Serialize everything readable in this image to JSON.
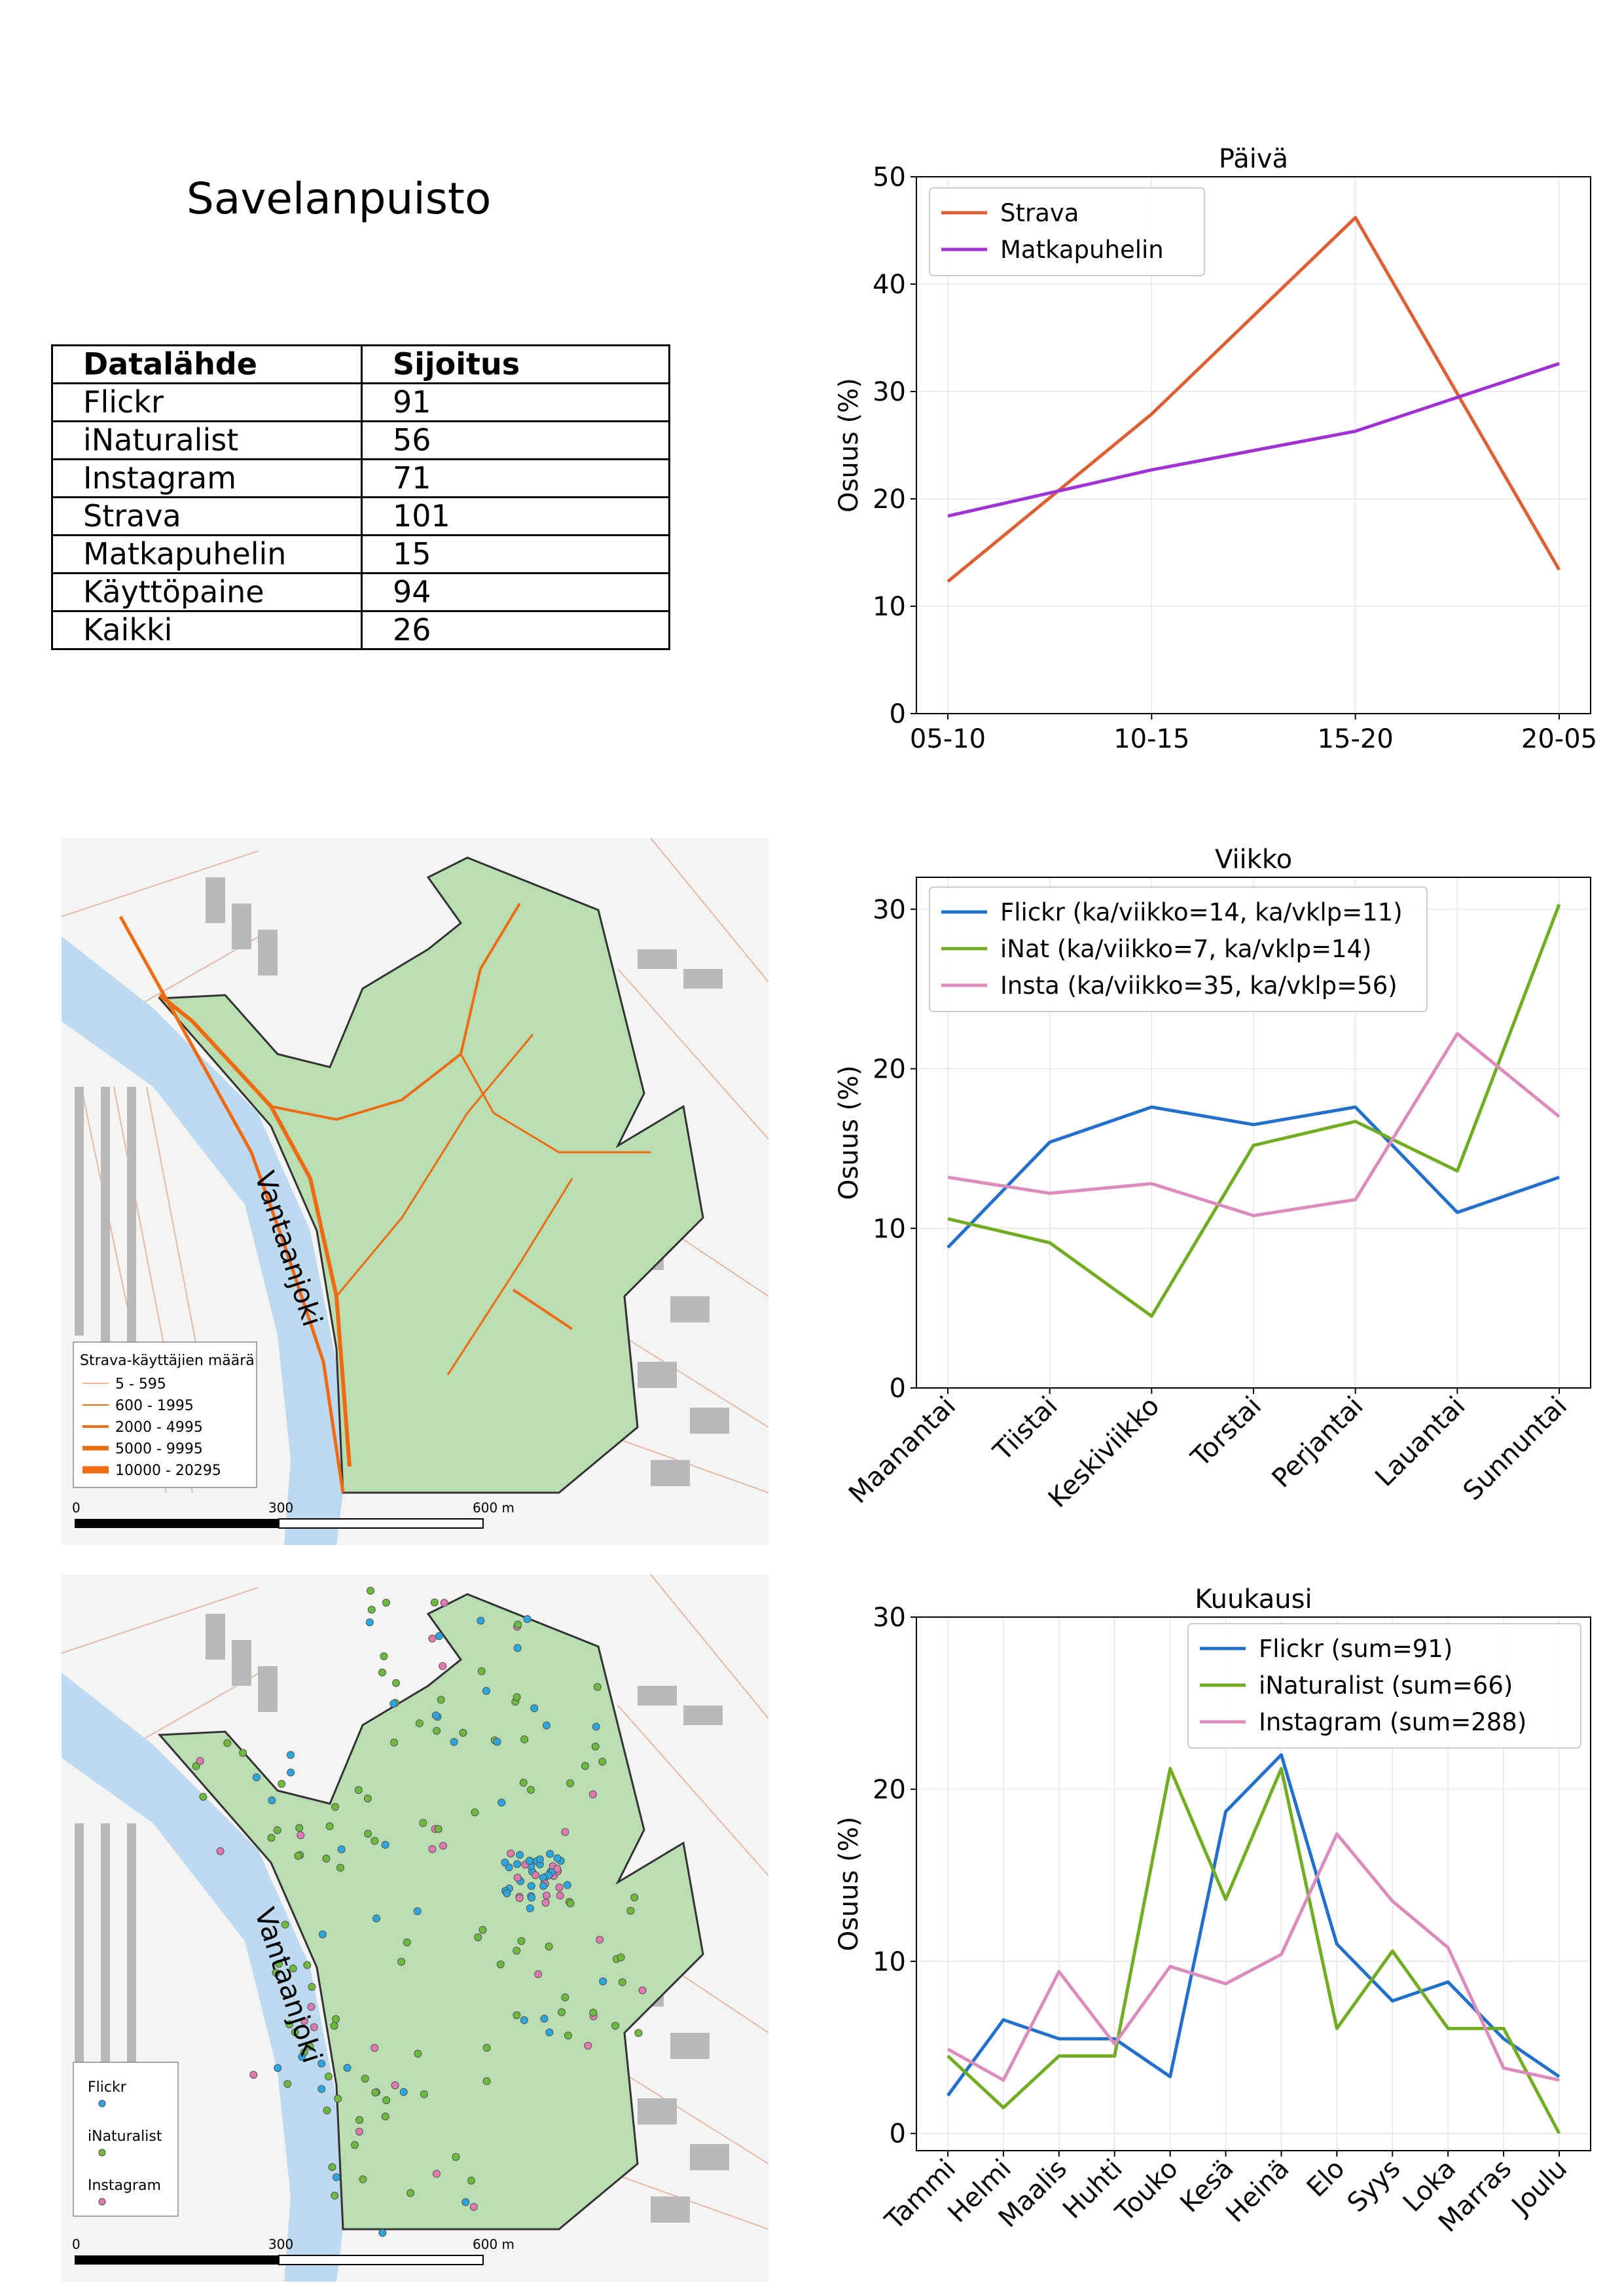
{
  "title": "Savelanpuisto",
  "table": {
    "headers": [
      "Datalähde",
      "Sijoitus"
    ],
    "rows": [
      [
        "Flickr",
        "91"
      ],
      [
        "iNaturalist",
        "56"
      ],
      [
        "Instagram",
        "71"
      ],
      [
        "Strava",
        "101"
      ],
      [
        "Matkapuhelin",
        "15"
      ],
      [
        "Käyttöpaine",
        "94"
      ],
      [
        "Kaikki",
        "26"
      ]
    ]
  },
  "map_strava": {
    "river_label": "Vantaanjoki",
    "legend_title": "Strava-käyttäjien määrä",
    "legend_items": [
      "5 - 595",
      "600 - 1995",
      "2000 - 4995",
      "5000 - 9995",
      "10000 - 20295"
    ],
    "scale_labels": [
      "0",
      "300",
      "600 m"
    ],
    "colors": {
      "park": "#b9deb2",
      "route": "#f06a12",
      "river": "#bedaf0"
    }
  },
  "map_points": {
    "river_label": "Vantaanjoki",
    "legend_items": [
      "Flickr",
      "iNaturalist",
      "Instagram"
    ],
    "scale_labels": [
      "0",
      "300",
      "600 m"
    ],
    "colors": {
      "flickr": "#2aa7e0",
      "inaturalist": "#6dba3c",
      "instagram": "#e07ab0"
    }
  },
  "chart_data": [
    {
      "type": "line",
      "title": "Päivä",
      "ylabel": "Osuus (%)",
      "xlabel": "",
      "categories": [
        "05-10",
        "10-15",
        "15-20",
        "20-05"
      ],
      "ylim": [
        0,
        50
      ],
      "yticks": [
        0,
        10,
        20,
        30,
        40,
        50
      ],
      "grid": true,
      "legend": "top-left",
      "series": [
        {
          "name": "Strava",
          "color": "#dc6034",
          "values": [
            12.3,
            27.9,
            46.2,
            13.4
          ]
        },
        {
          "name": "Matkapuhelin",
          "color": "#a031d4",
          "values": [
            18.4,
            22.7,
            26.3,
            32.6
          ]
        }
      ]
    },
    {
      "type": "line",
      "title": "Viikko",
      "ylabel": "Osuus (%)",
      "xlabel": "",
      "categories": [
        "Maanantai",
        "Tiistai",
        "Keskiviikko",
        "Torstai",
        "Perjantai",
        "Lauantai",
        "Sunnuntai"
      ],
      "ylim": [
        0,
        32
      ],
      "yticks": [
        0,
        10,
        20,
        30
      ],
      "grid": true,
      "legend": "top-left",
      "series": [
        {
          "name": "Flickr (ka/viikko=14, ka/vklp=11)",
          "color": "#2270cc",
          "values": [
            8.8,
            15.4,
            17.6,
            16.5,
            17.6,
            11.0,
            13.2
          ]
        },
        {
          "name": "iNat (ka/viikko=7, ka/vklp=14)",
          "color": "#72ac22",
          "values": [
            10.6,
            9.1,
            4.5,
            15.2,
            16.7,
            13.6,
            30.3
          ]
        },
        {
          "name": "Insta (ka/viikko=35, ka/vklp=56)",
          "color": "#dc8cbc",
          "values": [
            13.2,
            12.2,
            12.8,
            10.8,
            11.8,
            22.2,
            17.0
          ]
        }
      ]
    },
    {
      "type": "line",
      "title": "Kuukausi",
      "ylabel": "Osuus (%)",
      "xlabel": "",
      "categories": [
        "Tammi",
        "Helmi",
        "Maalis",
        "Huhti",
        "Touko",
        "Kesä",
        "Heinä",
        "Elo",
        "Syys",
        "Loka",
        "Marras",
        "Joulu"
      ],
      "ylim": [
        -1,
        30
      ],
      "yticks": [
        0,
        10,
        20,
        30
      ],
      "grid": true,
      "legend": "top-right",
      "series": [
        {
          "name": "Flickr (sum=91)",
          "color": "#2270cc",
          "values": [
            2.2,
            6.6,
            5.5,
            5.5,
            3.3,
            18.7,
            22.0,
            11.0,
            7.7,
            8.8,
            5.5,
            3.3
          ]
        },
        {
          "name": "iNaturalist (sum=66)",
          "color": "#72ac22",
          "values": [
            4.5,
            1.5,
            4.5,
            4.5,
            21.2,
            13.6,
            21.2,
            6.1,
            10.6,
            6.1,
            6.1,
            0.0
          ]
        },
        {
          "name": "Instagram (sum=288)",
          "color": "#dc8cbc",
          "values": [
            4.9,
            3.1,
            9.4,
            5.2,
            9.7,
            8.7,
            10.4,
            17.4,
            13.5,
            10.8,
            3.8,
            3.1
          ]
        }
      ]
    }
  ]
}
